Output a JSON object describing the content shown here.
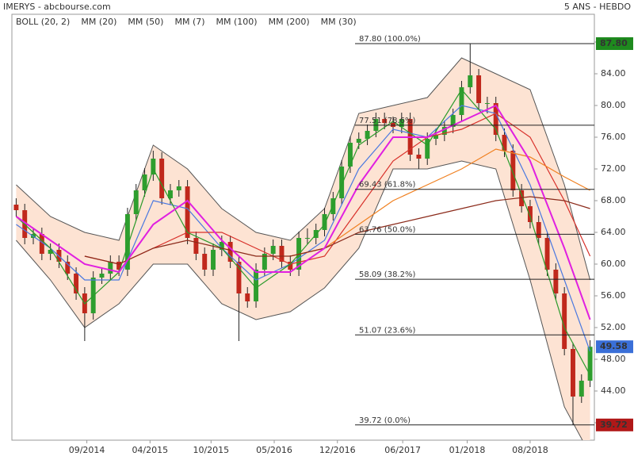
{
  "chart_data": {
    "type": "candlestick",
    "title": "IMERYS - abcbourse.com",
    "subtitle": "5 ANS - HEBDO",
    "x": [
      0,
      4,
      8,
      12,
      16,
      20,
      24,
      28,
      32,
      36,
      40,
      44,
      48,
      52,
      56,
      60,
      64,
      68,
      72,
      76,
      80,
      84,
      88,
      92,
      96,
      100,
      104,
      108,
      112,
      116,
      120,
      124,
      128,
      132,
      136,
      140,
      144,
      148,
      152,
      156,
      160,
      164,
      168,
      172,
      176,
      180,
      184,
      188,
      192,
      196,
      200,
      204,
      208,
      212,
      216,
      220,
      224,
      228,
      232,
      236,
      240,
      244,
      248,
      252,
      256,
      260,
      264,
      268
    ],
    "candles": [
      [
        67.5,
        68.3,
        66.0,
        66.8
      ],
      [
        66.8,
        67.6,
        62.5,
        63.3
      ],
      [
        63.3,
        64.6,
        62.5,
        63.8
      ],
      [
        63.8,
        64.6,
        60.5,
        61.3
      ],
      [
        61.3,
        62.6,
        60.5,
        61.8
      ],
      [
        61.8,
        62.6,
        59.5,
        60.3
      ],
      [
        60.3,
        61.1,
        58.0,
        58.8
      ],
      [
        58.8,
        59.6,
        55.5,
        56.3
      ],
      [
        56.3,
        57.1,
        50.3,
        53.8
      ],
      [
        53.8,
        59.1,
        53.0,
        58.3
      ],
      [
        58.3,
        59.6,
        57.5,
        58.8
      ],
      [
        58.8,
        61.1,
        58.0,
        60.3
      ],
      [
        60.3,
        61.1,
        58.5,
        59.3
      ],
      [
        59.3,
        67.1,
        58.5,
        66.3
      ],
      [
        66.3,
        70.1,
        65.5,
        69.3
      ],
      [
        69.3,
        72.1,
        68.5,
        71.3
      ],
      [
        71.3,
        74.3,
        70.5,
        73.3
      ],
      [
        73.3,
        74.1,
        67.5,
        68.3
      ],
      [
        68.3,
        70.1,
        67.5,
        69.3
      ],
      [
        69.3,
        70.6,
        68.5,
        69.8
      ],
      [
        69.8,
        70.6,
        62.5,
        63.3
      ],
      [
        63.3,
        64.1,
        60.5,
        61.3
      ],
      [
        61.3,
        62.1,
        58.5,
        59.3
      ],
      [
        59.3,
        62.6,
        58.5,
        61.8
      ],
      [
        61.8,
        63.6,
        61.0,
        62.8
      ],
      [
        62.8,
        63.6,
        59.5,
        60.3
      ],
      [
        60.3,
        61.1,
        50.3,
        56.3
      ],
      [
        56.3,
        57.1,
        54.5,
        55.3
      ],
      [
        55.3,
        60.1,
        54.5,
        59.3
      ],
      [
        59.3,
        62.1,
        58.5,
        61.3
      ],
      [
        61.3,
        63.1,
        60.5,
        62.3
      ],
      [
        62.3,
        63.1,
        59.5,
        60.3
      ],
      [
        60.3,
        61.1,
        58.5,
        59.3
      ],
      [
        59.3,
        64.1,
        58.5,
        63.3
      ],
      [
        63.3,
        64.5,
        62.5,
        63.3
      ],
      [
        63.3,
        65.1,
        62.5,
        64.3
      ],
      [
        64.3,
        67.1,
        63.5,
        66.3
      ],
      [
        66.3,
        69.1,
        65.5,
        68.3
      ],
      [
        68.3,
        73.1,
        67.5,
        72.3
      ],
      [
        72.3,
        76.1,
        71.5,
        75.3
      ],
      [
        75.3,
        76.6,
        74.5,
        75.8
      ],
      [
        75.8,
        77.6,
        75.0,
        76.8
      ],
      [
        76.8,
        79.1,
        76.0,
        78.3
      ],
      [
        78.3,
        79.1,
        77.0,
        77.8
      ],
      [
        77.8,
        78.6,
        76.5,
        77.3
      ],
      [
        77.3,
        79.1,
        76.5,
        78.3
      ],
      [
        78.3,
        79.1,
        73.0,
        73.8
      ],
      [
        73.8,
        74.6,
        72.0,
        73.3
      ],
      [
        73.3,
        76.6,
        72.5,
        75.8
      ],
      [
        75.8,
        77.1,
        75.0,
        76.3
      ],
      [
        76.3,
        78.1,
        75.5,
        77.3
      ],
      [
        77.3,
        79.6,
        76.5,
        78.8
      ],
      [
        78.8,
        83.1,
        78.0,
        82.3
      ],
      [
        82.3,
        87.8,
        81.5,
        83.8
      ],
      [
        83.8,
        84.6,
        79.5,
        80.3
      ],
      [
        80.3,
        81.1,
        79.0,
        80.3
      ],
      [
        80.3,
        81.1,
        75.5,
        76.3
      ],
      [
        76.3,
        77.1,
        73.5,
        74.3
      ],
      [
        74.3,
        75.1,
        68.5,
        69.3
      ],
      [
        69.3,
        70.1,
        66.5,
        67.3
      ],
      [
        67.3,
        68.1,
        64.5,
        65.3
      ],
      [
        65.3,
        66.1,
        62.5,
        63.3
      ],
      [
        63.3,
        64.1,
        58.5,
        59.3
      ],
      [
        59.3,
        60.1,
        55.5,
        56.3
      ],
      [
        56.3,
        57.1,
        48.5,
        49.3
      ],
      [
        49.3,
        50.1,
        39.72,
        43.3
      ],
      [
        43.3,
        46.1,
        42.5,
        45.3
      ],
      [
        45.3,
        50.4,
        44.5,
        49.58
      ]
    ],
    "up_color": "#2e9e2e",
    "down_color": "#c0281c",
    "bollinger": {
      "name": "BOLL (20, 2)",
      "color": "#555555",
      "fill": "#fde3d3",
      "x": [
        0,
        16,
        32,
        48,
        64,
        80,
        96,
        112,
        128,
        144,
        160,
        176,
        192,
        208,
        224,
        240,
        256,
        268
      ],
      "upper": [
        70,
        66,
        64,
        63,
        75,
        72,
        67,
        64,
        63,
        67,
        79,
        80,
        81,
        86,
        84,
        82,
        70,
        58
      ],
      "lower": [
        63,
        58,
        52,
        55,
        60,
        60,
        55,
        53,
        54,
        57,
        62,
        72,
        72,
        73,
        72,
        58,
        42,
        36
      ]
    },
    "series": [
      {
        "name": "MM (20)",
        "color": "#4a78e0",
        "x": [
          0,
          16,
          32,
          48,
          64,
          80,
          96,
          112,
          128,
          144,
          160,
          176,
          192,
          208,
          224,
          240,
          256,
          268
        ],
        "values": [
          65,
          62,
          58,
          58,
          68,
          67,
          62,
          58,
          60,
          63,
          72,
          77,
          76,
          80,
          79,
          70,
          58,
          49
        ]
      },
      {
        "name": "MM (50)",
        "color": "#d8302a",
        "x": [
          0,
          16,
          32,
          48,
          64,
          80,
          96,
          112,
          128,
          144,
          160,
          176,
          192,
          208,
          224,
          240,
          256,
          268
        ],
        "values": [
          null,
          null,
          61,
          60,
          62,
          64,
          64,
          62,
          60,
          61,
          67,
          73,
          76,
          77,
          79,
          76,
          68,
          61
        ]
      },
      {
        "name": "MM (7)",
        "color": "#2a9a2a",
        "x": [
          0,
          16,
          32,
          48,
          64,
          80,
          96,
          112,
          128,
          144,
          160,
          176,
          192,
          208,
          224,
          240,
          256,
          268
        ],
        "values": [
          66,
          62,
          55,
          59,
          72,
          64,
          62,
          57,
          60,
          65,
          75,
          78,
          75,
          82,
          77,
          66,
          52,
          46
        ]
      },
      {
        "name": "MM (100)",
        "color": "#f08020",
        "x": [
          0,
          16,
          32,
          48,
          64,
          80,
          96,
          112,
          128,
          144,
          160,
          176,
          192,
          208,
          224,
          240,
          256,
          268
        ],
        "values": [
          null,
          null,
          null,
          null,
          null,
          null,
          null,
          null,
          61,
          62,
          65,
          68,
          70,
          72,
          74.5,
          73.5,
          71,
          69.3
        ]
      },
      {
        "name": "MM (200)",
        "color": "#8b2a1a",
        "x": [
          0,
          16,
          32,
          48,
          64,
          80,
          96,
          112,
          128,
          144,
          160,
          176,
          192,
          208,
          224,
          240,
          256,
          268
        ],
        "values": [
          null,
          null,
          61,
          60,
          62,
          63,
          62,
          61,
          61,
          62,
          64,
          65,
          66,
          67,
          68,
          68.5,
          68,
          67
        ]
      },
      {
        "name": "MM (30)",
        "color": "#e020e0",
        "x": [
          0,
          16,
          32,
          48,
          64,
          80,
          96,
          112,
          128,
          144,
          160,
          176,
          192,
          208,
          224,
          240,
          256,
          268
        ],
        "values": [
          66,
          63,
          60,
          59,
          65,
          68,
          63,
          59,
          59,
          62,
          70,
          76,
          76,
          78,
          80,
          73,
          62,
          53
        ]
      }
    ],
    "fibonacci": [
      {
        "value": 87.8,
        "label": "87.80  (100.0%)"
      },
      {
        "value": 77.51,
        "label": "77.51  (78.6%)"
      },
      {
        "value": 69.43,
        "label": "69.43  (61.8%)"
      },
      {
        "value": 63.76,
        "label": "63.76  (50.0%)"
      },
      {
        "value": 58.09,
        "label": "58.09  (38.2%)"
      },
      {
        "value": 51.07,
        "label": "51.07  (23.6%)"
      },
      {
        "value": 39.72,
        "label": "39.72  (0.0%)"
      }
    ],
    "price_labels": [
      {
        "value": 87.8,
        "label": "87.80",
        "color": "#1e8a1e"
      },
      {
        "value": 49.58,
        "label": "49.58",
        "color": "#3a6fd8"
      },
      {
        "value": 39.72,
        "label": "39.72",
        "color": "#b01818"
      }
    ],
    "xlim": [
      -2,
      270
    ],
    "ylim": [
      37.8,
      91.5
    ],
    "xticks": [
      {
        "value": 33,
        "label": "09/2014"
      },
      {
        "value": 62.5,
        "label": "04/2015"
      },
      {
        "value": 91,
        "label": "10/2015"
      },
      {
        "value": 120.5,
        "label": "05/2016"
      },
      {
        "value": 150,
        "label": "12/2016"
      },
      {
        "value": 180.5,
        "label": "06/2017"
      },
      {
        "value": 210.6,
        "label": "01/2018"
      },
      {
        "value": 240,
        "label": "08/2018"
      }
    ],
    "yticks": [
      {
        "value": 40,
        "label": "40.00"
      },
      {
        "value": 44,
        "label": "44.00"
      },
      {
        "value": 48,
        "label": "48.00"
      },
      {
        "value": 52,
        "label": "52.00"
      },
      {
        "value": 56,
        "label": "56.00"
      },
      {
        "value": 60,
        "label": "60.00"
      },
      {
        "value": 64,
        "label": "64.00"
      },
      {
        "value": 68,
        "label": "68.00"
      },
      {
        "value": 72,
        "label": "72.00"
      },
      {
        "value": 76,
        "label": "76.00"
      },
      {
        "value": 80,
        "label": "80.00"
      },
      {
        "value": 84,
        "label": "84.00"
      },
      {
        "value": 88,
        "label": "88.00"
      }
    ]
  }
}
